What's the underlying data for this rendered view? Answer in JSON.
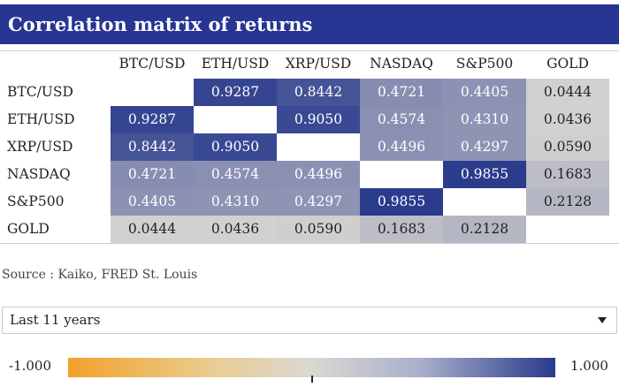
{
  "title": "Correlation matrix of returns",
  "source": "Source : Kaiko, FRED St. Louis",
  "period_select": {
    "value": "Last 11 years"
  },
  "color_scale": {
    "min_label": "-1.000",
    "max_label": "1.000",
    "min_color": "#f2a12b",
    "mid_color": "#dad8d2",
    "max_color": "#293a8c"
  },
  "chart_data": {
    "type": "heatmap",
    "title": "Correlation matrix of returns",
    "columns": [
      "BTC/USD",
      "ETH/USD",
      "XRP/USD",
      "NASDAQ",
      "S&P500",
      "GOLD"
    ],
    "rows": [
      "BTC/USD",
      "ETH/USD",
      "XRP/USD",
      "NASDAQ",
      "S&P500",
      "GOLD"
    ],
    "values": [
      [
        null,
        0.9287,
        0.8442,
        0.4721,
        0.4405,
        0.0444
      ],
      [
        0.9287,
        null,
        0.905,
        0.4574,
        0.431,
        0.0436
      ],
      [
        0.8442,
        0.905,
        null,
        0.4496,
        0.4297,
        0.059
      ],
      [
        0.4721,
        0.4574,
        0.4496,
        null,
        0.9855,
        0.1683
      ],
      [
        0.4405,
        0.431,
        0.4297,
        0.9855,
        null,
        0.2128
      ],
      [
        0.0444,
        0.0436,
        0.059,
        0.1683,
        0.2128,
        null
      ]
    ],
    "labels": [
      [
        "",
        "0.9287",
        "0.8442",
        "0.4721",
        "0.4405",
        "0.0444"
      ],
      [
        "0.9287",
        "",
        "0.9050",
        "0.4574",
        "0.4310",
        "0.0436"
      ],
      [
        "0.8442",
        "0.9050",
        "",
        "0.4496",
        "0.4297",
        "0.0590"
      ],
      [
        "0.4721",
        "0.4574",
        "0.4496",
        "",
        "0.9855",
        "0.1683"
      ],
      [
        "0.4405",
        "0.4310",
        "0.4297",
        "0.9855",
        "",
        "0.2128"
      ],
      [
        "0.0444",
        "0.0436",
        "0.0590",
        "0.1683",
        "0.2128",
        ""
      ]
    ],
    "color_range": [
      -1,
      1
    ]
  }
}
